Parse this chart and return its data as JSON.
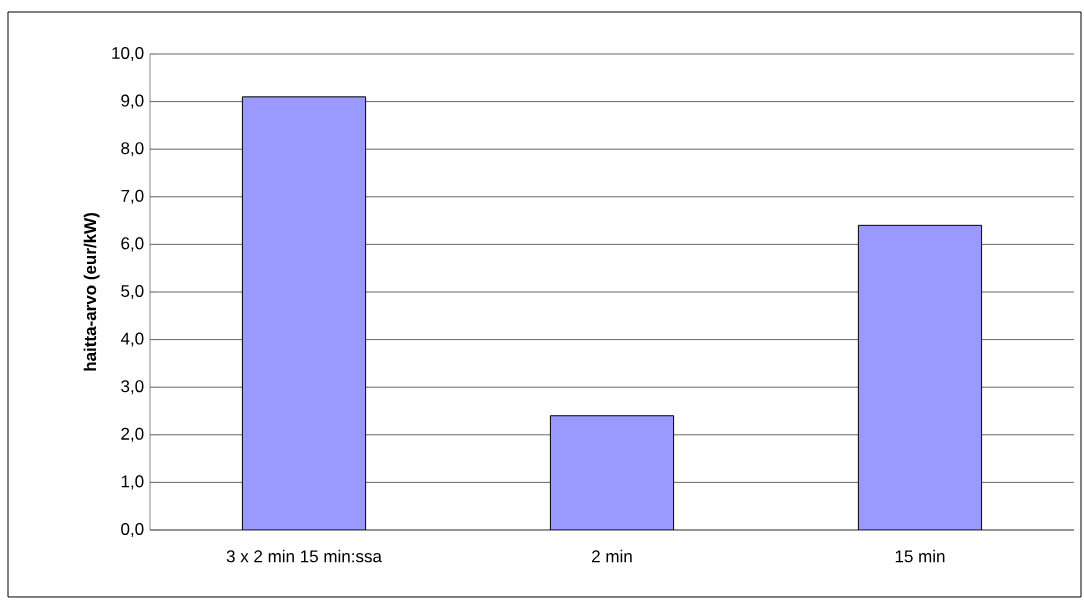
{
  "chart_data": {
    "type": "bar",
    "ylabel": "haitta-arvo (eur/kW)",
    "categories": [
      "3 x 2 min 15 min:ssa",
      "2 min",
      "15 min"
    ],
    "values": [
      9.1,
      2.4,
      6.4
    ],
    "color": "#9999ff",
    "ylim": [
      0,
      10
    ],
    "yticks": [
      {
        "value": 0,
        "label": "0,0"
      },
      {
        "value": 1,
        "label": "1,0"
      },
      {
        "value": 2,
        "label": "2,0"
      },
      {
        "value": 3,
        "label": "3,0"
      },
      {
        "value": 4,
        "label": "4,0"
      },
      {
        "value": 5,
        "label": "5,0"
      },
      {
        "value": 6,
        "label": "6,0"
      },
      {
        "value": 7,
        "label": "7,0"
      },
      {
        "value": 8,
        "label": "8,0"
      },
      {
        "value": 9,
        "label": "9,0"
      },
      {
        "value": 10,
        "label": "10,0"
      }
    ],
    "grid": "y"
  }
}
